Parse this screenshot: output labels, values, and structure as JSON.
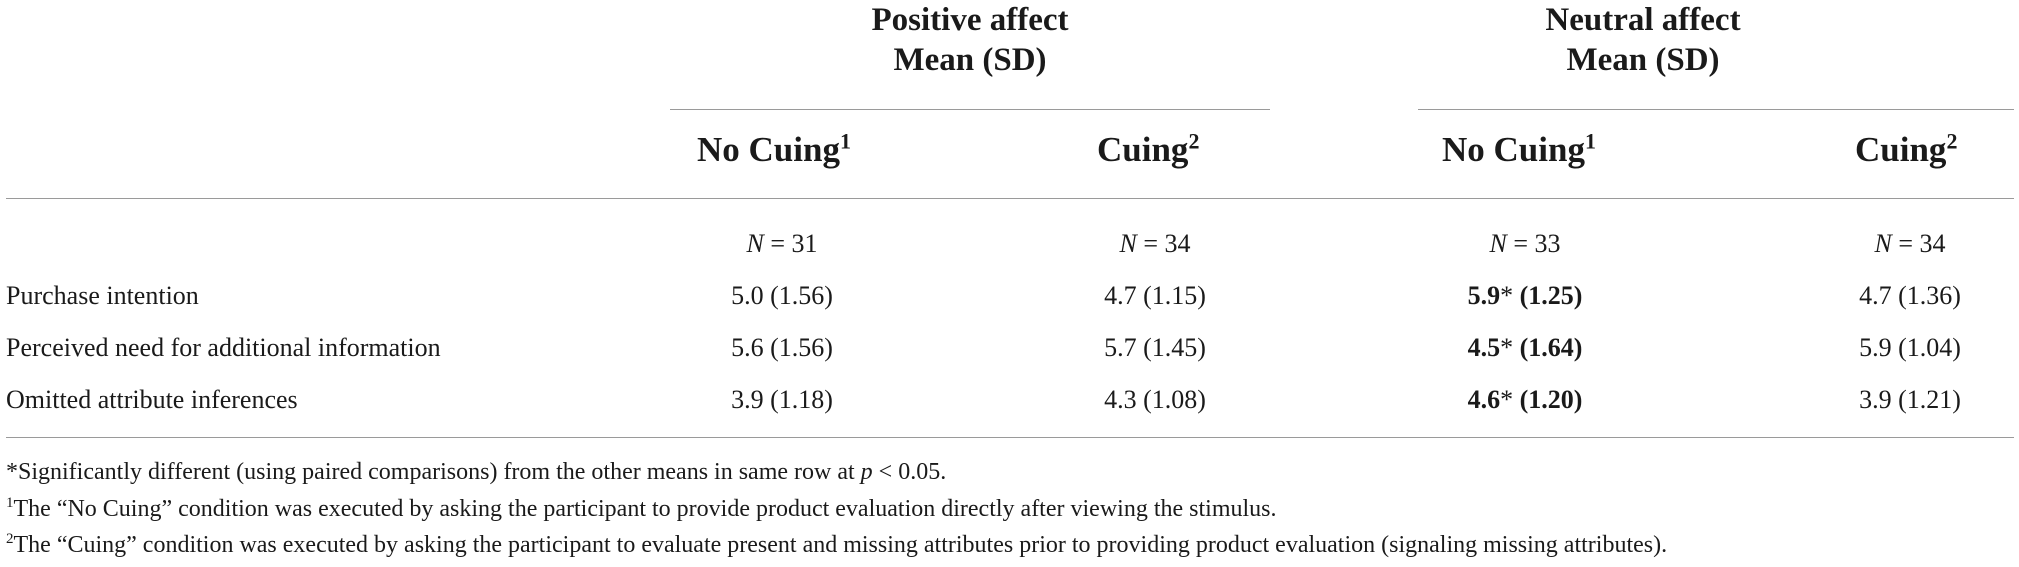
{
  "groups": [
    {
      "title": "Positive affect",
      "subtitle": "Mean (SD)"
    },
    {
      "title": "Neutral affect",
      "subtitle": "Mean (SD)"
    }
  ],
  "conditions": [
    {
      "label": "No Cuing",
      "sup": "1"
    },
    {
      "label": "Cuing",
      "sup": "2"
    },
    {
      "label": "No Cuing",
      "sup": "1"
    },
    {
      "label": "Cuing",
      "sup": "2"
    }
  ],
  "sample_sizes": [
    {
      "n_label": "N",
      "eq": " = 31"
    },
    {
      "n_label": "N",
      "eq": " = 34"
    },
    {
      "n_label": "N",
      "eq": " = 33"
    },
    {
      "n_label": "N",
      "eq": " = 34"
    }
  ],
  "rows": [
    {
      "label": "Purchase intention",
      "cells": [
        {
          "mean": "5.0",
          "star": "",
          "sd": " (1.56)",
          "bold": false
        },
        {
          "mean": "4.7",
          "star": "",
          "sd": " (1.15)",
          "bold": false
        },
        {
          "mean": "5.9",
          "star": "*",
          "sd": " (1.25)",
          "bold": true
        },
        {
          "mean": "4.7",
          "star": "",
          "sd": " (1.36)",
          "bold": false
        }
      ]
    },
    {
      "label": "Perceived need for additional information",
      "cells": [
        {
          "mean": "5.6",
          "star": "",
          "sd": " (1.56)",
          "bold": false
        },
        {
          "mean": "5.7",
          "star": "",
          "sd": " (1.45)",
          "bold": false
        },
        {
          "mean": "4.5",
          "star": "*",
          "sd": " (1.64)",
          "bold": true
        },
        {
          "mean": "5.9",
          "star": "",
          "sd": " (1.04)",
          "bold": false
        }
      ]
    },
    {
      "label": "Omitted attribute inferences",
      "cells": [
        {
          "mean": "3.9",
          "star": "",
          "sd": " (1.18)",
          "bold": false
        },
        {
          "mean": "4.3",
          "star": "",
          "sd": " (1.08)",
          "bold": false
        },
        {
          "mean": "4.6",
          "star": "*",
          "sd": " (1.20)",
          "bold": true
        },
        {
          "mean": "3.9",
          "star": "",
          "sd": " (1.21)",
          "bold": false
        }
      ]
    }
  ],
  "footnotes": {
    "star": {
      "text": "*Significantly different (using paired comparisons) from the other means in same row at ",
      "p": "p",
      "tail": " < 0.05."
    },
    "note1": {
      "sup": "1",
      "text": "The “No Cuing” condition was executed by asking the participant to provide product evaluation directly after viewing the stimulus."
    },
    "note2": {
      "sup": "2",
      "text": "The “Cuing” condition was executed by asking the participant to evaluate present and missing attributes prior to providing product evaluation (signaling missing attributes)."
    }
  }
}
